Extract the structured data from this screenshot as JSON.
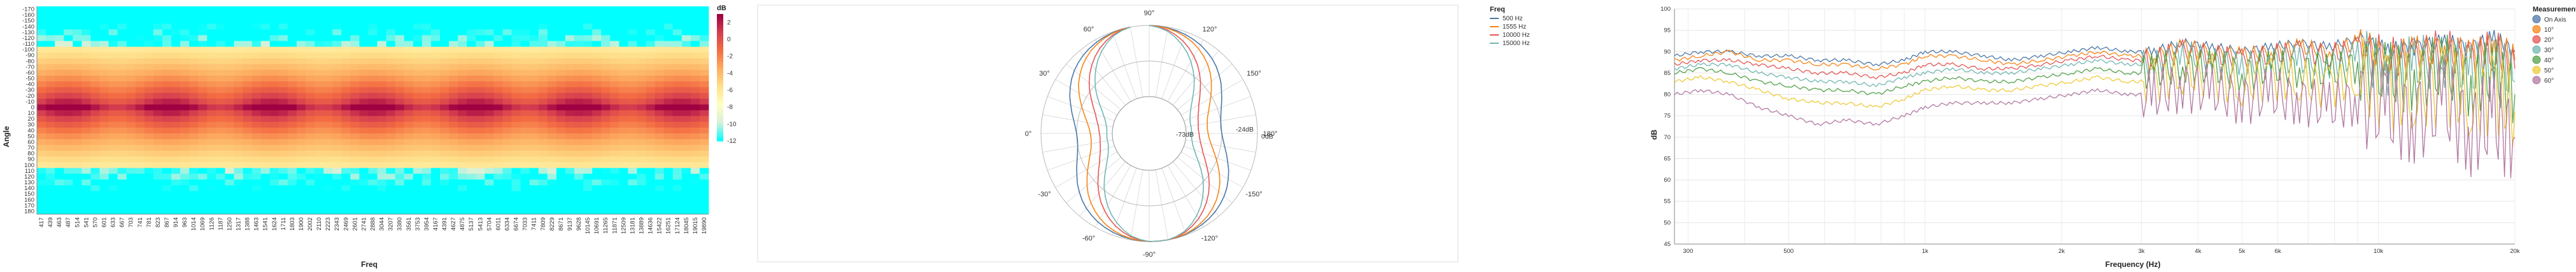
{
  "chart_data": [
    {
      "type": "heatmap",
      "xlabel": "Freq",
      "ylabel": "Angle",
      "angles": [
        -170,
        -160,
        -150,
        -140,
        -130,
        -120,
        -110,
        -100,
        -90,
        -80,
        -70,
        -60,
        -50,
        -40,
        -30,
        -20,
        -10,
        0,
        10,
        20,
        30,
        40,
        50,
        60,
        70,
        80,
        90,
        100,
        110,
        120,
        130,
        140,
        150,
        160,
        170,
        180
      ],
      "freqs": [
        417,
        439,
        463,
        487,
        514,
        541,
        570,
        601,
        633,
        667,
        703,
        741,
        781,
        823,
        867,
        914,
        963,
        1014,
        1069,
        1126,
        1187,
        1250,
        1317,
        1388,
        1463,
        1541,
        1624,
        1711,
        1803,
        1900,
        2002,
        2110,
        2223,
        2343,
        2469,
        2601,
        2741,
        2888,
        3044,
        3207,
        3380,
        3561,
        3753,
        3954,
        4167,
        4391,
        4627,
        4875,
        5137,
        5413,
        5704,
        6011,
        6334,
        6674,
        7033,
        7411,
        7809,
        8229,
        8671,
        9137,
        9628,
        10145,
        10691,
        11265,
        11871,
        12509,
        13181,
        13889,
        14636,
        15422,
        16251,
        17124,
        18045,
        19015,
        19890
      ],
      "tick_labels": [
        "417",
        "439",
        "463",
        "487",
        "514",
        "541",
        "570",
        "601",
        "633",
        "667",
        "703",
        "741",
        "781",
        "823",
        "867",
        "914",
        "963",
        "1014",
        "1069",
        "1126",
        "1187",
        "1250",
        "1317",
        "1388",
        "1463",
        "1541",
        "1624",
        "1711",
        "1803",
        "1900",
        "2002",
        "2110",
        "2223",
        "2343",
        "2469",
        "2601",
        "2741",
        "2888",
        "3044",
        "3207",
        "3380",
        "3561",
        "3753",
        "3954",
        "4167",
        "4391",
        "4627",
        "4875",
        "5137",
        "5413",
        "5704",
        "6011",
        "6334",
        "6674",
        "7033",
        "7411",
        "7809",
        "8229",
        "8671",
        "9137",
        "9628",
        "10145",
        "10691",
        "11265",
        "11871",
        "12509",
        "13181",
        "13889",
        "14636",
        "15422",
        "16251",
        "17124",
        "18045",
        "19015",
        "19890"
      ],
      "color_scale": {
        "title": "dB",
        "range": [
          -12,
          3
        ],
        "ticks": [
          2,
          0,
          -2,
          -4,
          -6,
          -8,
          -10,
          -12
        ],
        "colors": [
          "#00ffff",
          "#d8f0d8",
          "#ffffbf",
          "#fee08b",
          "#fdae61",
          "#f46d43",
          "#d53e4f",
          "#9e0142"
        ]
      }
    },
    {
      "type": "line",
      "subtype": "polar",
      "angle_ticks": [
        "0°",
        "30°",
        "60°",
        "90°",
        "120°",
        "150°",
        "180°",
        "-150°",
        "-120°",
        "-90°",
        "-60°",
        "-30°"
      ],
      "radial_ticks": [
        "-73dB",
        "-24dB",
        "0dB"
      ],
      "legend_title": "Freq",
      "series": [
        {
          "name": "500 Hz",
          "color": "#4c78a8",
          "db": [
            0,
            -0.1,
            -0.3,
            -0.6,
            -1.0,
            -1.5,
            -2.1,
            -2.9,
            -3.8,
            -4.9,
            -6.2,
            -7.5,
            -9.0,
            -10.3,
            -11.5,
            -12.4,
            -13.0,
            -13.2,
            -13.0,
            -12.4,
            -11.5,
            -10.3,
            -9.0,
            -7.5,
            -6.2,
            -4.9,
            -3.8,
            -2.9,
            -2.1,
            -1.5,
            -1.0,
            -0.6,
            -0.3,
            -0.1,
            0
          ]
        },
        {
          "name": "1555 Hz",
          "color": "#f58518",
          "db": [
            0,
            -0.2,
            -0.5,
            -1.0,
            -1.7,
            -2.5,
            -3.6,
            -4.9,
            -6.4,
            -8.0,
            -9.9,
            -11.8,
            -13.6,
            -15.2,
            -16.5,
            -17.5,
            -18.0,
            -18.2,
            -18.0,
            -17.5,
            -16.5,
            -15.2,
            -13.6,
            -11.8,
            -9.9,
            -8.0,
            -6.4,
            -4.9,
            -3.6,
            -2.5,
            -1.7,
            -1.0,
            -0.5,
            -0.2,
            0
          ]
        },
        {
          "name": "10000 Hz",
          "color": "#e45756",
          "db": [
            0,
            -0.4,
            -1.1,
            -2.2,
            -3.5,
            -5.1,
            -6.9,
            -8.8,
            -10.9,
            -13.0,
            -15.2,
            -17.0,
            -18.6,
            -19.6,
            -20.5,
            -21.0,
            -21.3,
            -21.5,
            -21.3,
            -21.0,
            -20.5,
            -19.6,
            -18.6,
            -17.0,
            -15.2,
            -13.0,
            -10.9,
            -8.8,
            -6.9,
            -5.1,
            -3.5,
            -2.2,
            -1.1,
            -0.4,
            0
          ]
        },
        {
          "name": "15000 Hz",
          "color": "#72b7b2",
          "db": [
            0,
            -0.6,
            -1.5,
            -3.0,
            -4.8,
            -6.8,
            -9.1,
            -11.5,
            -13.9,
            -16.4,
            -18.7,
            -20.6,
            -22.0,
            -23.0,
            -23.6,
            -24.0,
            -24.0,
            -24.0,
            -24.0,
            -24.0,
            -23.6,
            -23.0,
            -22.0,
            -20.6,
            -18.7,
            -16.4,
            -13.9,
            -11.5,
            -9.1,
            -6.8,
            -4.8,
            -3.0,
            -1.5,
            -0.6,
            0
          ]
        }
      ]
    },
    {
      "type": "line",
      "xlabel": "Frequency (Hz)",
      "ylabel": "dB",
      "xscale": "log",
      "xlim": [
        280,
        20000
      ],
      "ylim": [
        45,
        100
      ],
      "x_tick_values": [
        300,
        500,
        1000,
        2000,
        3000,
        4000,
        5000,
        6000,
        10000,
        20000
      ],
      "x_tick_labels": [
        "300",
        "500",
        "1k",
        "2k",
        "3k",
        "4k",
        "5k",
        "6k",
        "10k",
        "20k"
      ],
      "y_ticks": [
        45,
        50,
        55,
        60,
        65,
        70,
        75,
        80,
        85,
        90,
        95,
        100
      ],
      "legend_title": "Measurements",
      "x": [
        280,
        320,
        370,
        430,
        500,
        580,
        670,
        780,
        900,
        1000,
        1150,
        1350,
        1550,
        1800,
        2100,
        2400,
        2800,
        3200,
        3700,
        4300,
        5000,
        5800,
        6700,
        7800,
        9000,
        10500,
        12000,
        14000,
        16000,
        18000,
        20000
      ],
      "series": [
        {
          "name": "On Axis",
          "color": "#4c78a8",
          "values": [
            89,
            90,
            90,
            89,
            89,
            88,
            88,
            87,
            88,
            90,
            90,
            89,
            88,
            89,
            90,
            91,
            90,
            90,
            92,
            91,
            90,
            91,
            92,
            91,
            93,
            90,
            91,
            92,
            91,
            93,
            90
          ]
        },
        {
          "name": "10°",
          "color": "#f58518",
          "values": [
            88,
            89,
            90,
            88,
            88,
            87,
            87,
            86,
            87,
            89,
            89,
            88,
            87,
            88,
            89,
            90,
            89,
            89,
            91,
            90,
            89,
            90,
            91,
            90,
            92,
            89,
            90,
            91,
            89,
            92,
            88
          ]
        },
        {
          "name": "20°",
          "color": "#e45756",
          "values": [
            87,
            88,
            88,
            87,
            86,
            85,
            85,
            84,
            85,
            87,
            87,
            86,
            86,
            87,
            88,
            89,
            88,
            88,
            90,
            89,
            88,
            89,
            90,
            89,
            91,
            88,
            89,
            90,
            88,
            90,
            86
          ]
        },
        {
          "name": "30°",
          "color": "#72b7b2",
          "values": [
            86,
            87,
            87,
            85,
            84,
            83,
            83,
            82,
            84,
            85,
            86,
            85,
            85,
            86,
            87,
            88,
            87,
            87,
            89,
            88,
            86,
            88,
            88,
            87,
            89,
            86,
            87,
            88,
            85,
            88,
            83
          ]
        },
        {
          "name": "40°",
          "color": "#54a24b",
          "values": [
            85,
            86,
            85,
            83,
            82,
            81,
            81,
            80,
            82,
            83,
            84,
            83,
            83,
            84,
            85,
            86,
            85,
            85,
            87,
            86,
            85,
            86,
            86,
            85,
            87,
            84,
            84,
            86,
            82,
            85,
            80
          ]
        },
        {
          "name": "50°",
          "color": "#eeca3b",
          "values": [
            83,
            84,
            83,
            81,
            79,
            78,
            78,
            77,
            79,
            81,
            82,
            81,
            81,
            82,
            83,
            84,
            83,
            83,
            85,
            84,
            82,
            84,
            83,
            82,
            84,
            81,
            80,
            83,
            78,
            81,
            76
          ]
        },
        {
          "name": "60°",
          "color": "#b279a2",
          "values": [
            80,
            81,
            80,
            77,
            75,
            73,
            74,
            73,
            75,
            77,
            78,
            78,
            78,
            79,
            80,
            81,
            80,
            80,
            82,
            81,
            79,
            80,
            79,
            77,
            79,
            76,
            75,
            78,
            72,
            74,
            70
          ]
        }
      ]
    }
  ]
}
